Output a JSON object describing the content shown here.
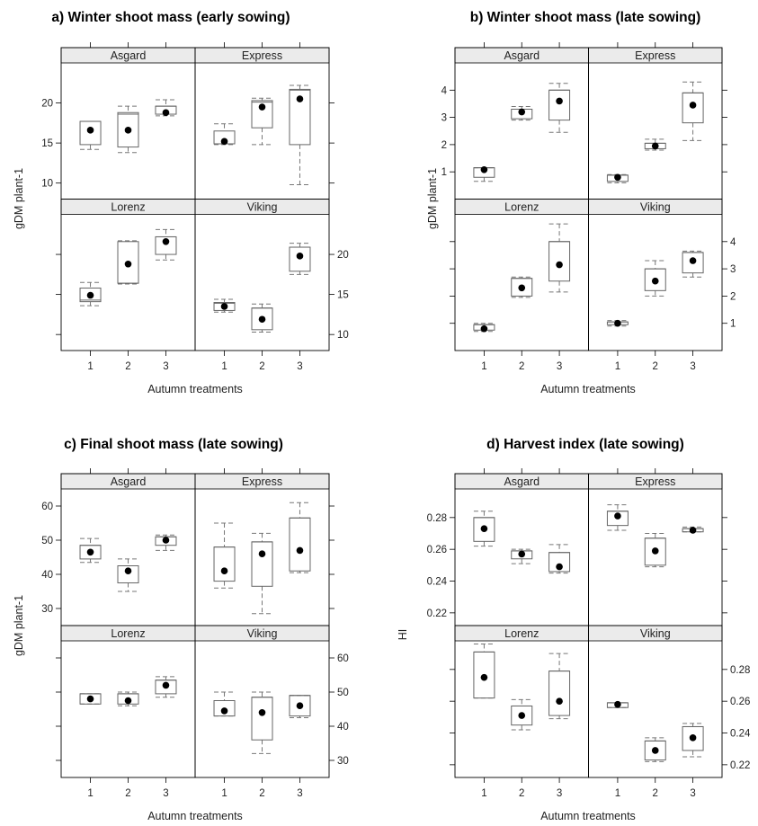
{
  "chart_data": [
    {
      "type": "box",
      "title": "a) Winter shoot mass (early sowing)",
      "xlabel": "Autumn treatments",
      "ylabel": "gDM plant-1",
      "categories": [
        "1",
        "2",
        "3"
      ],
      "ylim": [
        8,
        25
      ],
      "yticks": [
        10,
        15,
        20
      ],
      "panels": [
        {
          "name": "Asgard",
          "boxes": [
            {
              "min": 14.2,
              "q1": 14.8,
              "median": 17.7,
              "q3": 17.7,
              "max": 17.7,
              "mean": 16.6
            },
            {
              "min": 13.8,
              "q1": 14.5,
              "median": 18.6,
              "q3": 18.8,
              "max": 19.6,
              "mean": 16.6
            },
            {
              "min": 18.4,
              "q1": 18.6,
              "median": 19.6,
              "q3": 19.6,
              "max": 20.4,
              "mean": 18.8
            }
          ]
        },
        {
          "name": "Express",
          "boxes": [
            {
              "min": 14.8,
              "q1": 14.9,
              "median": 14.9,
              "q3": 16.5,
              "max": 17.4,
              "mean": 15.2
            },
            {
              "min": 14.8,
              "q1": 16.9,
              "median": 20.1,
              "q3": 20.3,
              "max": 20.6,
              "mean": 19.5
            },
            {
              "min": 9.8,
              "q1": 14.8,
              "median": 21.6,
              "q3": 21.7,
              "max": 22.2,
              "mean": 20.5
            }
          ]
        },
        {
          "name": "Lorenz",
          "boxes": [
            {
              "min": 13.6,
              "q1": 14.1,
              "median": 14.3,
              "q3": 15.8,
              "max": 16.5,
              "mean": 14.9
            },
            {
              "min": 16.3,
              "q1": 16.4,
              "median": 16.4,
              "q3": 21.6,
              "max": 21.7,
              "mean": 18.8
            },
            {
              "min": 19.3,
              "q1": 20.0,
              "median": 22.2,
              "q3": 22.2,
              "max": 23.1,
              "mean": 21.6
            }
          ]
        },
        {
          "name": "Viking",
          "boxes": [
            {
              "min": 12.8,
              "q1": 13.0,
              "median": 13.9,
              "q3": 14.0,
              "max": 14.4,
              "mean": 13.5
            },
            {
              "min": 10.3,
              "q1": 10.6,
              "median": 13.3,
              "q3": 13.3,
              "max": 13.8,
              "mean": 11.9
            },
            {
              "min": 17.5,
              "q1": 17.9,
              "median": 20.9,
              "q3": 20.9,
              "max": 21.4,
              "mean": 19.8
            }
          ]
        }
      ]
    },
    {
      "type": "box",
      "title": "b) Winter shoot mass (late sowing)",
      "xlabel": "Autumn treatments",
      "ylabel": "gDM plant-1",
      "categories": [
        "1",
        "2",
        "3"
      ],
      "ylim": [
        0.0,
        5.0
      ],
      "yticks": [
        1,
        2,
        3,
        4
      ],
      "panels": [
        {
          "name": "Asgard",
          "boxes": [
            {
              "min": 0.65,
              "q1": 0.8,
              "median": 1.15,
              "q3": 1.15,
              "max": 1.15,
              "mean": 1.08
            },
            {
              "min": 2.9,
              "q1": 2.95,
              "median": 3.3,
              "q3": 3.3,
              "max": 3.4,
              "mean": 3.2
            },
            {
              "min": 2.45,
              "q1": 2.9,
              "median": 4.0,
              "q3": 4.0,
              "max": 4.25,
              "mean": 3.6
            }
          ]
        },
        {
          "name": "Express",
          "boxes": [
            {
              "min": 0.6,
              "q1": 0.65,
              "median": 0.88,
              "q3": 0.88,
              "max": 0.9,
              "mean": 0.8
            },
            {
              "min": 1.8,
              "q1": 1.85,
              "median": 2.05,
              "q3": 2.05,
              "max": 2.2,
              "mean": 1.95
            },
            {
              "min": 2.15,
              "q1": 2.8,
              "median": 3.9,
              "q3": 3.9,
              "max": 4.3,
              "mean": 3.45
            }
          ]
        },
        {
          "name": "Lorenz",
          "boxes": [
            {
              "min": 0.7,
              "q1": 0.75,
              "median": 0.95,
              "q3": 0.95,
              "max": 1.0,
              "mean": 0.8
            },
            {
              "min": 1.95,
              "q1": 2.0,
              "median": 2.65,
              "q3": 2.65,
              "max": 2.7,
              "mean": 2.3
            },
            {
              "min": 2.15,
              "q1": 2.55,
              "median": 4.0,
              "q3": 4.0,
              "max": 4.65,
              "mean": 3.15
            }
          ]
        },
        {
          "name": "Viking",
          "boxes": [
            {
              "min": 0.9,
              "q1": 0.95,
              "median": 1.05,
              "q3": 1.05,
              "max": 1.1,
              "mean": 1.0
            },
            {
              "min": 2.0,
              "q1": 2.2,
              "median": 3.0,
              "q3": 3.0,
              "max": 3.3,
              "mean": 2.55
            },
            {
              "min": 2.7,
              "q1": 2.85,
              "median": 3.6,
              "q3": 3.6,
              "max": 3.65,
              "mean": 3.3
            }
          ]
        }
      ]
    },
    {
      "type": "box",
      "title": "c) Final shoot mass (late sowing)",
      "xlabel": "Autumn treatments",
      "ylabel": "gDM plant-1",
      "categories": [
        "1",
        "2",
        "3"
      ],
      "ylim": [
        25,
        65
      ],
      "yticks": [
        30,
        40,
        50,
        60
      ],
      "panels": [
        {
          "name": "Asgard",
          "boxes": [
            {
              "min": 43.5,
              "q1": 44.5,
              "median": 48.5,
              "q3": 48.5,
              "max": 50.5,
              "mean": 46.5
            },
            {
              "min": 35.0,
              "q1": 37.5,
              "median": 42.5,
              "q3": 42.5,
              "max": 44.5,
              "mean": 41.0
            },
            {
              "min": 47.0,
              "q1": 48.5,
              "median": 51.0,
              "q3": 51.0,
              "max": 51.5,
              "mean": 50.0
            }
          ]
        },
        {
          "name": "Express",
          "boxes": [
            {
              "min": 36.0,
              "q1": 38.0,
              "median": 48.0,
              "q3": 48.0,
              "max": 55.0,
              "mean": 41.0
            },
            {
              "min": 28.5,
              "q1": 36.5,
              "median": 49.5,
              "q3": 49.5,
              "max": 52.0,
              "mean": 46.0
            },
            {
              "min": 40.5,
              "q1": 41.0,
              "median": 56.5,
              "q3": 56.5,
              "max": 61.0,
              "mean": 47.0
            }
          ]
        },
        {
          "name": "Lorenz",
          "boxes": [
            {
              "min": 46.5,
              "q1": 46.5,
              "median": 49.5,
              "q3": 49.5,
              "max": 49.5,
              "mean": 48.0
            },
            {
              "min": 46.0,
              "q1": 46.5,
              "median": 49.5,
              "q3": 49.5,
              "max": 50.0,
              "mean": 47.5
            },
            {
              "min": 48.5,
              "q1": 49.5,
              "median": 53.5,
              "q3": 53.5,
              "max": 54.5,
              "mean": 52.0
            }
          ]
        },
        {
          "name": "Viking",
          "boxes": [
            {
              "min": 43.0,
              "q1": 43.0,
              "median": 47.5,
              "q3": 47.5,
              "max": 50.0,
              "mean": 44.5
            },
            {
              "min": 32.0,
              "q1": 36.0,
              "median": 48.5,
              "q3": 48.5,
              "max": 50.0,
              "mean": 44.0
            },
            {
              "min": 42.5,
              "q1": 43.0,
              "median": 49.0,
              "q3": 49.0,
              "max": 49.0,
              "mean": 46.0
            }
          ]
        }
      ]
    },
    {
      "type": "box",
      "title": "d) Harvest index (late sowing)",
      "xlabel": "Autumn treatments",
      "ylabel": "HI",
      "categories": [
        "1",
        "2",
        "3"
      ],
      "ylim": [
        0.212,
        0.298
      ],
      "yticks": [
        0.22,
        0.24,
        0.26,
        0.28
      ],
      "panels": [
        {
          "name": "Asgard",
          "boxes": [
            {
              "min": 0.262,
              "q1": 0.265,
              "median": 0.28,
              "q3": 0.28,
              "max": 0.284,
              "mean": 0.273
            },
            {
              "min": 0.251,
              "q1": 0.254,
              "median": 0.259,
              "q3": 0.259,
              "max": 0.26,
              "mean": 0.257
            },
            {
              "min": 0.245,
              "q1": 0.246,
              "median": 0.258,
              "q3": 0.258,
              "max": 0.263,
              "mean": 0.249
            }
          ]
        },
        {
          "name": "Express",
          "boxes": [
            {
              "min": 0.272,
              "q1": 0.275,
              "median": 0.284,
              "q3": 0.284,
              "max": 0.288,
              "mean": 0.281
            },
            {
              "min": 0.249,
              "q1": 0.25,
              "median": 0.267,
              "q3": 0.267,
              "max": 0.27,
              "mean": 0.259
            },
            {
              "min": 0.271,
              "q1": 0.271,
              "median": 0.273,
              "q3": 0.273,
              "max": 0.274,
              "mean": 0.272
            }
          ]
        },
        {
          "name": "Lorenz",
          "boxes": [
            {
              "min": 0.262,
              "q1": 0.262,
              "median": 0.291,
              "q3": 0.291,
              "max": 0.296,
              "mean": 0.275
            },
            {
              "min": 0.242,
              "q1": 0.245,
              "median": 0.257,
              "q3": 0.257,
              "max": 0.261,
              "mean": 0.251
            },
            {
              "min": 0.249,
              "q1": 0.251,
              "median": 0.279,
              "q3": 0.279,
              "max": 0.29,
              "mean": 0.26
            }
          ]
        },
        {
          "name": "Viking",
          "boxes": [
            {
              "min": 0.256,
              "q1": 0.256,
              "median": 0.259,
              "q3": 0.259,
              "max": 0.259,
              "mean": 0.258
            },
            {
              "min": 0.222,
              "q1": 0.223,
              "median": 0.235,
              "q3": 0.235,
              "max": 0.237,
              "mean": 0.229
            },
            {
              "min": 0.225,
              "q1": 0.229,
              "median": 0.244,
              "q3": 0.244,
              "max": 0.246,
              "mean": 0.237
            }
          ]
        }
      ]
    }
  ]
}
